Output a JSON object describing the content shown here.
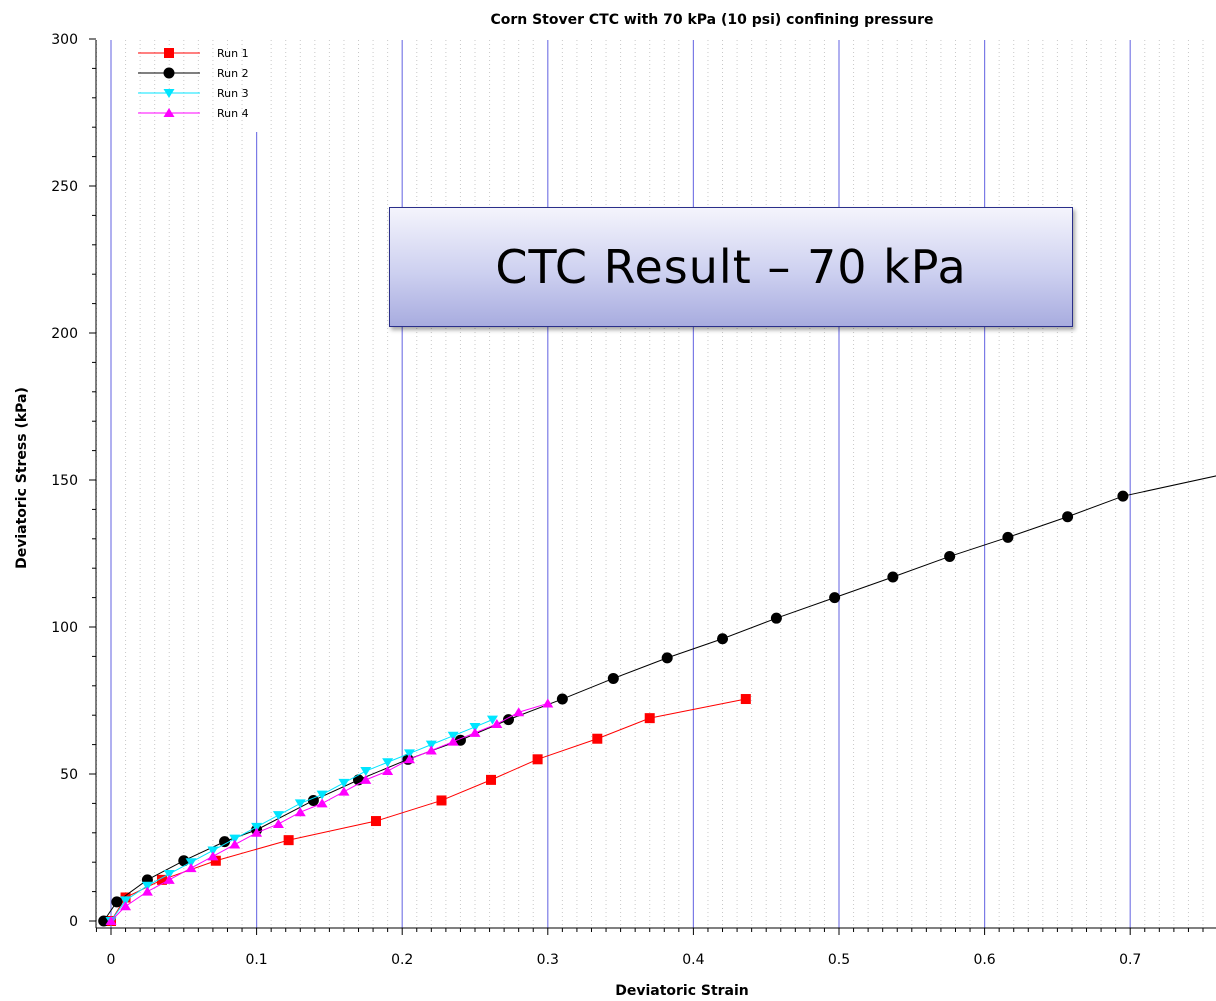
{
  "chart_data": {
    "type": "line",
    "title": "Corn Stover CTC with 70 kPa (10 psi) confining pressure",
    "xlabel": "Deviatoric Strain",
    "ylabel": "Deviatoric Stress (kPa)",
    "xlim": [
      -0.012,
      0.76
    ],
    "ylim": [
      -3,
      300
    ],
    "xticks": [
      0,
      0.1,
      0.2,
      0.3,
      0.4,
      0.5,
      0.6,
      0.7
    ],
    "xtick_labels": [
      "0",
      "0.1",
      "0.2",
      "0.3",
      "0.4",
      "0.5",
      "0.6",
      "0.7"
    ],
    "yticks": [
      0,
      50,
      100,
      150,
      200,
      250,
      300
    ],
    "ytick_labels": [
      "0",
      "50",
      "100",
      "150",
      "200",
      "250",
      "300"
    ],
    "grid": "vertical",
    "legend_position": "top-left",
    "series": [
      {
        "name": "Run 1",
        "color": "#ff0000",
        "marker": "square",
        "x": [
          0.0,
          0.01,
          0.035,
          0.072,
          0.122,
          0.182,
          0.227,
          0.261,
          0.293,
          0.334,
          0.37,
          0.436
        ],
        "y": [
          0,
          8,
          14,
          20.5,
          27.5,
          34,
          41,
          48,
          55,
          62,
          69,
          75.5
        ]
      },
      {
        "name": "Run 2",
        "color": "#000000",
        "marker": "circle",
        "x": [
          -0.005,
          0.004,
          0.025,
          0.05,
          0.078,
          0.1,
          0.139,
          0.17,
          0.204,
          0.24,
          0.273,
          0.31,
          0.345,
          0.382,
          0.42,
          0.457,
          0.497,
          0.537,
          0.576,
          0.616,
          0.657,
          0.695,
          0.76
        ],
        "y": [
          0,
          6.5,
          14,
          20.5,
          27,
          31,
          41,
          48,
          55,
          61.5,
          68.5,
          75.5,
          82.5,
          89.5,
          96,
          103,
          110,
          117,
          124,
          130.5,
          137.5,
          144.5,
          151.5
        ]
      },
      {
        "name": "Run 3",
        "color": "#00e5ff",
        "marker": "triangle-down",
        "x": [
          0.0,
          0.01,
          0.025,
          0.04,
          0.055,
          0.07,
          0.085,
          0.1,
          0.115,
          0.13,
          0.145,
          0.16,
          0.175,
          0.19,
          0.205,
          0.22,
          0.235,
          0.25,
          0.262
        ],
        "y": [
          0,
          7,
          12,
          16,
          20,
          24,
          28,
          32,
          36,
          40,
          43,
          47,
          51,
          54,
          57,
          60,
          63,
          66,
          68.5
        ]
      },
      {
        "name": "Run 4",
        "color": "#ff00ff",
        "marker": "triangle-up",
        "x": [
          0.0,
          0.01,
          0.025,
          0.04,
          0.055,
          0.07,
          0.085,
          0.1,
          0.115,
          0.13,
          0.145,
          0.16,
          0.175,
          0.19,
          0.205,
          0.22,
          0.235,
          0.25,
          0.265,
          0.28,
          0.3
        ],
        "y": [
          0,
          5,
          10,
          14,
          18,
          22,
          26,
          30,
          33,
          37,
          40,
          44,
          48,
          51,
          55,
          58,
          61,
          64,
          67,
          71,
          74
        ]
      }
    ]
  },
  "overlay": {
    "label": "CTC Result – 70 kPa"
  }
}
